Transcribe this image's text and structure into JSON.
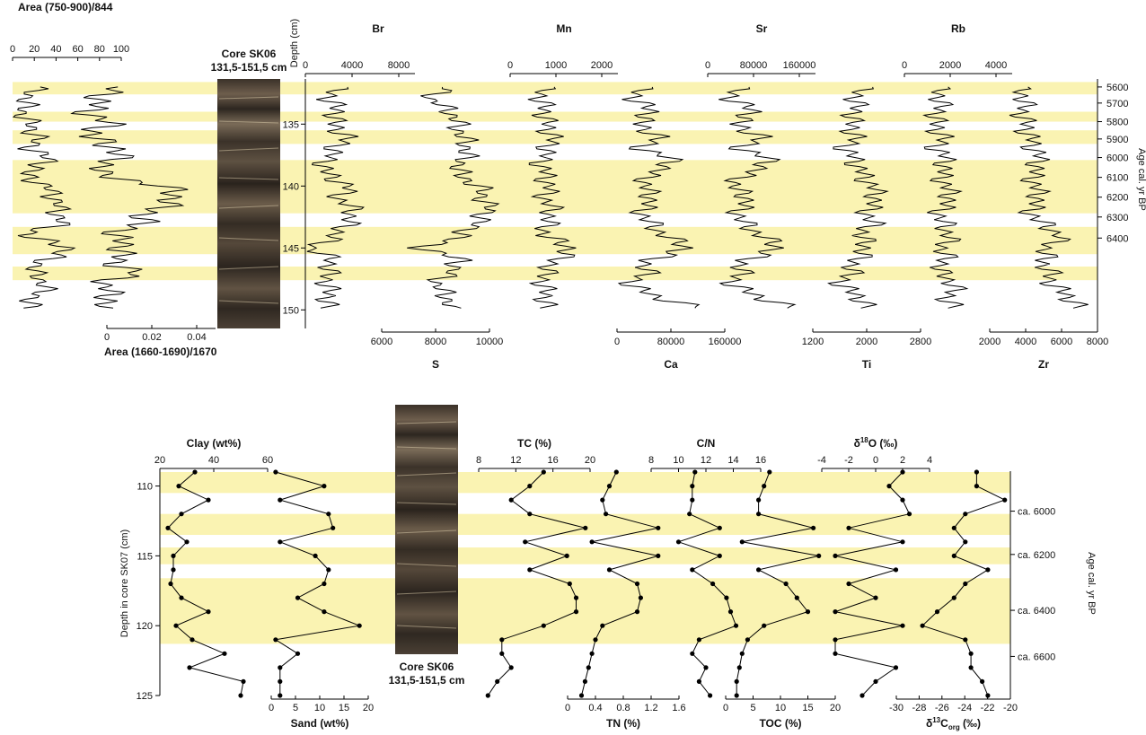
{
  "top": {
    "core_title_l1": "Core SK06",
    "core_title_l2": "131,5-151,5 cm",
    "depth_axis_label": "Depth (cm)",
    "age_axis_label": "Age cal. yr BP",
    "depth_ticks": [
      135,
      140,
      145,
      150
    ],
    "age_ticks": [
      5600,
      5700,
      5800,
      5900,
      6000,
      6100,
      6200,
      6300,
      6400
    ],
    "age_tick_depths": [
      132.0,
      133.3,
      134.8,
      136.2,
      137.7,
      139.3,
      140.9,
      142.5,
      144.2
    ],
    "bands": [
      [
        131.6,
        132.6
      ],
      [
        134.0,
        134.8
      ],
      [
        135.5,
        136.6
      ],
      [
        137.9,
        142.2
      ],
      [
        143.3,
        145.5
      ],
      [
        146.5,
        147.6
      ]
    ],
    "ftir_top_axis": {
      "title": "Area (750-900)/844",
      "ticks": [
        "0",
        "20",
        "40",
        "60",
        "80",
        "100"
      ]
    },
    "ftir_bottom_axis": {
      "title": "Area (1660-1690)/1670",
      "ticks": [
        "0",
        "0.02",
        "0.04"
      ]
    },
    "element_top_axes": [
      {
        "title": "Br",
        "ticks": [
          "0",
          "4000",
          "8000"
        ]
      },
      {
        "title": "Mn",
        "ticks": [
          "0",
          "1000",
          "2000"
        ]
      },
      {
        "title": "Sr",
        "ticks": [
          "0",
          "80000",
          "160000"
        ]
      },
      {
        "title": "Rb",
        "ticks": [
          "0",
          "2000",
          "4000"
        ]
      }
    ],
    "element_bottom_axes": [
      {
        "title": "S",
        "ticks": [
          "6000",
          "8000",
          "10000"
        ]
      },
      {
        "title": "Ca",
        "ticks": [
          "0",
          "80000",
          "160000"
        ]
      },
      {
        "title": "Ti",
        "ticks": [
          "1200",
          "2000",
          "2800"
        ]
      },
      {
        "title": "Zr",
        "ticks": [
          "2000",
          "4000",
          "6000",
          "8000"
        ]
      }
    ]
  },
  "bottom": {
    "core_title_l1": "Core SK06",
    "core_title_l2": "131,5-151,5 cm",
    "depth_axis_label": "Depth in core SK07 (cm)",
    "age_axis_label": "Age cal. yr BP",
    "depth_ticks": [
      110,
      115,
      120,
      125
    ],
    "age_ticks": [
      "ca. 6000",
      "ca. 6200",
      "ca. 6400",
      "ca. 6600"
    ],
    "age_tick_depths": [
      111.8,
      114.9,
      118.9,
      122.2
    ],
    "bands": [
      [
        109.0,
        110.5
      ],
      [
        112.0,
        113.5
      ],
      [
        114.4,
        115.6
      ],
      [
        116.6,
        121.3
      ]
    ],
    "top_axes": [
      {
        "title": "Clay (wt%)",
        "ticks": [
          "20",
          "40",
          "60"
        ]
      },
      {
        "title": "TC (%)",
        "ticks": [
          "8",
          "12",
          "16",
          "20"
        ]
      },
      {
        "title": "C/N",
        "ticks": [
          "8",
          "10",
          "12",
          "14",
          "16"
        ]
      },
      {
        "title": "δ18O (‰)",
        "ticks": [
          "-4",
          "-2",
          "0",
          "2",
          "4"
        ]
      }
    ],
    "bottom_axes": [
      {
        "title": "Sand (wt%)",
        "ticks": [
          "0",
          "5",
          "10",
          "15",
          "20"
        ]
      },
      {
        "title": "TN (%)",
        "ticks": [
          "0",
          "0.4",
          "0.8",
          "1.2",
          "1.6"
        ]
      },
      {
        "title": "TOC (%)",
        "ticks": [
          "0",
          "5",
          "10",
          "15",
          "20"
        ]
      },
      {
        "title": "δ13Corg (‰)",
        "ticks": [
          "-30",
          "-28",
          "-26",
          "-24",
          "-22",
          "-20"
        ]
      }
    ]
  },
  "chart_data": [
    {
      "type": "line",
      "panel": "top",
      "y_axis": "Depth (cm)",
      "ylim": [
        131.5,
        151.5
      ],
      "series": [
        {
          "name": "Area (750-900)/844",
          "xlim": [
            0,
            100
          ],
          "depth": [
            132,
            133,
            134,
            135,
            136,
            137,
            138,
            139,
            140,
            141,
            142,
            143,
            144,
            145,
            146,
            147,
            148,
            149,
            150
          ],
          "values": [
            20,
            14,
            9,
            16,
            22,
            18,
            35,
            10,
            30,
            40,
            42,
            45,
            10,
            55,
            28,
            18,
            32,
            20,
            12
          ]
        },
        {
          "name": "Area (1660-1690)/1670",
          "xlim": [
            0,
            0.06
          ],
          "depth": [
            132,
            133,
            134,
            135,
            136,
            137,
            138,
            139,
            140,
            141,
            142,
            143,
            144,
            145,
            146,
            147,
            148,
            149,
            150
          ],
          "values": [
            0.02,
            0.015,
            0.01,
            0.018,
            0.01,
            0.022,
            0.02,
            0.012,
            0.04,
            0.045,
            0.035,
            0.03,
            0.02,
            0.025,
            0.02,
            0.028,
            0.015,
            0.02,
            0.012
          ]
        },
        {
          "name": "Br",
          "xlim": [
            0,
            10000
          ],
          "depth": [
            132,
            133,
            134,
            135,
            136,
            137,
            138,
            139,
            140,
            141,
            142,
            143,
            144,
            145,
            146,
            147,
            148,
            149,
            150
          ],
          "values": [
            2800,
            2200,
            3000,
            2500,
            3800,
            2800,
            1800,
            1800,
            4000,
            3000,
            4500,
            3800,
            2800,
            600,
            2500,
            2000,
            2000,
            2200,
            1800
          ]
        },
        {
          "name": "S",
          "xlim": [
            6000,
            10000
          ],
          "depth": [
            132,
            133,
            134,
            135,
            136,
            137,
            138,
            139,
            140,
            141,
            142,
            143,
            144,
            145,
            146,
            147,
            148,
            149,
            150
          ],
          "values": [
            8400,
            7800,
            8600,
            8800,
            9000,
            9200,
            9000,
            8800,
            9600,
            9800,
            10000,
            9500,
            9000,
            7500,
            9000,
            8500,
            8000,
            8500,
            8400
          ]
        },
        {
          "name": "Mn",
          "xlim": [
            0,
            2800
          ],
          "depth": [
            132,
            133,
            134,
            135,
            136,
            137,
            138,
            139,
            140,
            141,
            142,
            143,
            144,
            145,
            146,
            147,
            148,
            149,
            150
          ],
          "values": [
            850,
            800,
            900,
            950,
            1100,
            1000,
            800,
            900,
            1000,
            900,
            1100,
            950,
            900,
            1600,
            1200,
            900,
            850,
            950,
            900
          ]
        },
        {
          "name": "Ca",
          "xlim": [
            0,
            180000
          ],
          "depth": [
            132,
            133,
            134,
            135,
            136,
            137,
            138,
            139,
            140,
            141,
            142,
            143,
            144,
            145,
            146,
            147,
            148,
            149,
            150
          ],
          "values": [
            40000,
            30000,
            60000,
            35000,
            70000,
            40000,
            100000,
            55000,
            45000,
            60000,
            40000,
            55000,
            80000,
            120000,
            50000,
            50000,
            20000,
            70000,
            150000
          ]
        },
        {
          "name": "Sr",
          "xlim": [
            0,
            180000
          ],
          "depth": [
            132,
            133,
            134,
            135,
            136,
            137,
            138,
            139,
            140,
            141,
            142,
            143,
            144,
            145,
            146,
            147,
            148,
            149,
            150
          ],
          "values": [
            50000,
            40000,
            80000,
            45000,
            90000,
            55000,
            110000,
            65000,
            40000,
            70000,
            50000,
            60000,
            90000,
            120000,
            60000,
            55000,
            40000,
            90000,
            150000
          ]
        },
        {
          "name": "Ti",
          "xlim": [
            1200,
            3200
          ],
          "depth": [
            132,
            133,
            134,
            135,
            136,
            137,
            138,
            139,
            140,
            141,
            142,
            143,
            144,
            145,
            146,
            147,
            148,
            149,
            150
          ],
          "values": [
            2100,
            2000,
            2000,
            1900,
            2000,
            1800,
            2000,
            2100,
            2300,
            2400,
            2200,
            2300,
            2100,
            2200,
            2000,
            1900,
            1700,
            2100,
            2200
          ]
        },
        {
          "name": "Rb",
          "xlim": [
            0,
            5000
          ],
          "depth": [
            132,
            133,
            134,
            135,
            136,
            137,
            138,
            139,
            140,
            141,
            142,
            143,
            144,
            145,
            146,
            147,
            148,
            149,
            150
          ],
          "values": [
            1500,
            1700,
            1600,
            1400,
            1800,
            1500,
            2000,
            1700,
            1900,
            2200,
            1600,
            1800,
            2100,
            1800,
            1900,
            1600,
            2400,
            2000,
            2300
          ]
        },
        {
          "name": "Zr",
          "xlim": [
            2000,
            8000
          ],
          "depth": [
            132,
            133,
            134,
            135,
            136,
            137,
            138,
            139,
            140,
            141,
            142,
            143,
            144,
            145,
            146,
            147,
            148,
            149,
            150
          ],
          "values": [
            3500,
            4000,
            3800,
            4000,
            4200,
            4500,
            4800,
            4400,
            4500,
            4800,
            4200,
            4900,
            6000,
            5200,
            5000,
            5300,
            5500,
            6500,
            7000
          ]
        }
      ]
    },
    {
      "type": "line",
      "panel": "bottom",
      "y_axis": "Depth in core SK07 (cm)",
      "ylim": [
        109,
        125
      ],
      "depth": [
        109,
        110,
        111,
        112,
        113,
        114,
        115,
        116,
        117,
        118,
        119,
        120,
        121,
        122,
        123,
        124,
        125
      ],
      "series": [
        {
          "name": "Clay (wt%)",
          "xlim": [
            20,
            60
          ],
          "values": [
            33,
            27,
            38,
            28,
            23,
            30,
            25,
            25,
            24,
            28,
            38,
            26,
            32,
            44,
            31,
            51,
            50
          ]
        },
        {
          "name": "Sand (wt%)",
          "xlim": [
            0,
            22
          ],
          "values": [
            1,
            12,
            2,
            13,
            14,
            2,
            10,
            13,
            12,
            6,
            12,
            20,
            1,
            6,
            2,
            2,
            2
          ]
        },
        {
          "name": "TC (%)",
          "xlim": [
            8,
            20
          ],
          "values": [
            15,
            13.5,
            11.5,
            13.5,
            19.5,
            13,
            17.5,
            13.5,
            17.8,
            18.5,
            18.5,
            15,
            10.5,
            10.5,
            11.5,
            10,
            9
          ]
        },
        {
          "name": "TN (%)",
          "xlim": [
            0,
            1.6
          ],
          "values": [
            0.7,
            0.6,
            0.5,
            0.55,
            1.3,
            0.35,
            1.3,
            0.6,
            1.0,
            1.05,
            1.0,
            0.5,
            0.4,
            0.35,
            0.3,
            0.25,
            0.2
          ]
        },
        {
          "name": "C/N",
          "xlim": [
            8,
            16
          ],
          "values": [
            11.2,
            11,
            11,
            10.8,
            13,
            10,
            13,
            11,
            12.5,
            13.5,
            13.8,
            14.2,
            11.5,
            11,
            12,
            11.5,
            12.3
          ]
        },
        {
          "name": "TOC (%)",
          "xlim": [
            0,
            20
          ],
          "values": [
            8,
            7,
            6,
            6,
            16,
            3,
            17,
            6,
            11,
            13,
            15,
            7,
            4,
            3,
            2.5,
            2,
            2
          ]
        },
        {
          "name": "δ18O (‰)",
          "xlim": [
            -4,
            4
          ],
          "values": [
            2,
            1,
            2,
            2.5,
            -2,
            2,
            -3,
            1.5,
            -2,
            0,
            -3,
            2,
            -3,
            -3,
            1.5,
            0,
            -1
          ]
        },
        {
          "name": "δ13Corg (‰)",
          "xlim": [
            -31,
            -20
          ],
          "values": [
            -23,
            -23,
            -20.5,
            -24,
            -25,
            -24,
            -25,
            -22,
            -24,
            -25,
            -26.5,
            -27.8,
            -24,
            -23.5,
            -23.5,
            -22.5,
            -22
          ]
        }
      ]
    }
  ]
}
